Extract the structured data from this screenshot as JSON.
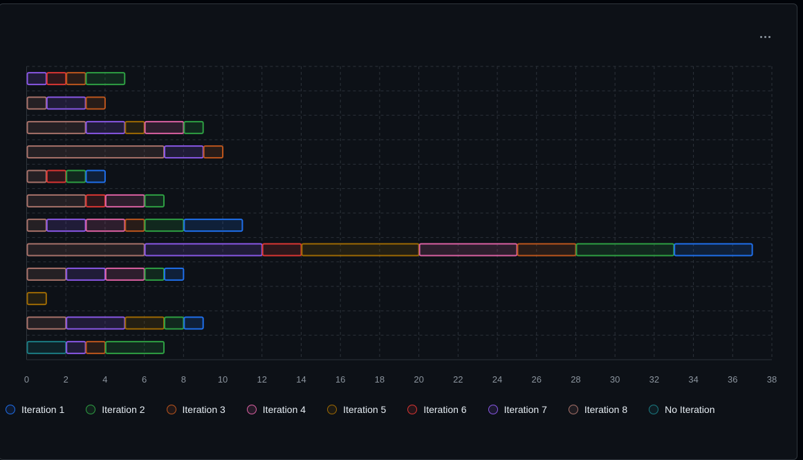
{
  "chart_data": {
    "type": "bar",
    "orientation": "horizontal",
    "stacked": true,
    "xlim": [
      0,
      38
    ],
    "x_ticks": [
      "0",
      "2",
      "4",
      "6",
      "8",
      "10",
      "12",
      "14",
      "16",
      "18",
      "20",
      "22",
      "24",
      "26",
      "28",
      "30",
      "32",
      "34",
      "36",
      "38"
    ],
    "grid": true,
    "legend_position": "bottom",
    "category_count": 12,
    "series": [
      {
        "name": "No Iteration",
        "color": "#1b7c83",
        "values": [
          0,
          0,
          0,
          0,
          0,
          0,
          0,
          0,
          0,
          0,
          0,
          2
        ]
      },
      {
        "name": "Iteration 8",
        "color": "#a8726a",
        "values": [
          0,
          1,
          3,
          7,
          1,
          3,
          1,
          6,
          2,
          0,
          2,
          0
        ]
      },
      {
        "name": "Iteration 7",
        "color": "#8957e5",
        "values": [
          1,
          2,
          2,
          2,
          0,
          0,
          2,
          6,
          2,
          0,
          3,
          1
        ]
      },
      {
        "name": "Iteration 6",
        "color": "#da3633",
        "values": [
          1,
          0,
          0,
          0,
          1,
          1,
          0,
          2,
          0,
          0,
          0,
          0
        ]
      },
      {
        "name": "Iteration 5",
        "color": "#9e6a03",
        "values": [
          0,
          0,
          1,
          0,
          0,
          0,
          0,
          6,
          0,
          1,
          2,
          0
        ]
      },
      {
        "name": "Iteration 4",
        "color": "#db61a2",
        "values": [
          0,
          0,
          2,
          0,
          0,
          2,
          2,
          5,
          2,
          0,
          0,
          0
        ]
      },
      {
        "name": "Iteration 3",
        "color": "#bd561d",
        "values": [
          1,
          1,
          0,
          1,
          0,
          0,
          1,
          3,
          0,
          0,
          0,
          1
        ]
      },
      {
        "name": "Iteration 2",
        "color": "#2ea043",
        "values": [
          2,
          0,
          1,
          0,
          1,
          1,
          2,
          5,
          1,
          0,
          1,
          3
        ]
      },
      {
        "name": "Iteration 1",
        "color": "#1f6feb",
        "values": [
          0,
          0,
          0,
          0,
          1,
          0,
          3,
          4,
          1,
          0,
          1,
          0
        ]
      }
    ]
  },
  "legend": [
    {
      "label": "Iteration 1",
      "color": "#1f6feb"
    },
    {
      "label": "Iteration 2",
      "color": "#2ea043"
    },
    {
      "label": "Iteration 3",
      "color": "#bd561d"
    },
    {
      "label": "Iteration 4",
      "color": "#db61a2"
    },
    {
      "label": "Iteration 5",
      "color": "#9e6a03"
    },
    {
      "label": "Iteration 6",
      "color": "#da3633"
    },
    {
      "label": "Iteration 7",
      "color": "#8957e5"
    },
    {
      "label": "Iteration 8",
      "color": "#a8726a"
    },
    {
      "label": "No Iteration",
      "color": "#1b7c83"
    }
  ],
  "menu": {
    "icon": "kebab-horizontal-icon"
  }
}
